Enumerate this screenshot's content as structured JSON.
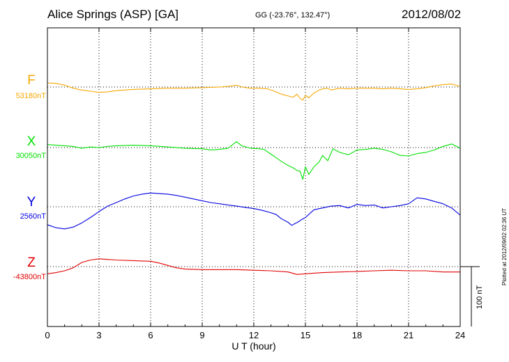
{
  "header": {
    "station": "Alice Springs (ASP)  [GA]",
    "coords": "GG (-23.76°, 132.47°)",
    "date": "2012/08/02"
  },
  "footer": {
    "plotted": "Plotted at 2012/09/02 02:36 UT",
    "scale_label": "100 nT"
  },
  "channels": [
    {
      "name": "F",
      "baseline": "53180nT",
      "color": "#f5a800"
    },
    {
      "name": "X",
      "baseline": "30050nT",
      "color": "#00e000"
    },
    {
      "name": "Y",
      "baseline": "2560nT",
      "color": "#0000e0"
    },
    {
      "name": "Z",
      "baseline": "-43800nT",
      "color": "#e00000"
    }
  ],
  "chart_data": {
    "type": "line",
    "xlabel": "U T (hour)",
    "xlim": [
      0,
      24
    ],
    "x_ticks": [
      0,
      3,
      6,
      9,
      12,
      15,
      18,
      21,
      24
    ],
    "x_tick_labels": [
      "0",
      "3",
      "6",
      "9",
      "12",
      "15",
      "18",
      "21",
      "24"
    ],
    "y_unit": "nT",
    "scale_bar_nT": 100,
    "grid": true,
    "series": [
      {
        "name": "F",
        "baseline_nT": 53180,
        "points": [
          [
            0,
            7
          ],
          [
            0.5,
            6
          ],
          [
            1,
            3
          ],
          [
            1.5,
            -2
          ],
          [
            2,
            -5
          ],
          [
            2.5,
            -7
          ],
          [
            3,
            -9
          ],
          [
            3.5,
            -8
          ],
          [
            4,
            -6
          ],
          [
            5,
            -4
          ],
          [
            6,
            -3
          ],
          [
            7,
            -2
          ],
          [
            8,
            -2
          ],
          [
            9,
            -1
          ],
          [
            10,
            0
          ],
          [
            10.5,
            1
          ],
          [
            11,
            3
          ],
          [
            11.3,
            0
          ],
          [
            11.8,
            -2
          ],
          [
            12.3,
            -2
          ],
          [
            12.8,
            -3
          ],
          [
            13.2,
            -7
          ],
          [
            13.6,
            -12
          ],
          [
            14,
            -15
          ],
          [
            14.3,
            -17
          ],
          [
            14.5,
            -12
          ],
          [
            14.7,
            -19
          ],
          [
            14.85,
            -22
          ],
          [
            15,
            -14
          ],
          [
            15.2,
            -18
          ],
          [
            15.5,
            -10
          ],
          [
            15.8,
            -5
          ],
          [
            16,
            -3
          ],
          [
            16.3,
            -2
          ],
          [
            16.5,
            -5
          ],
          [
            17,
            -2
          ],
          [
            17.5,
            -3
          ],
          [
            18,
            -2
          ],
          [
            18.5,
            -2
          ],
          [
            19,
            -2
          ],
          [
            19.5,
            -3
          ],
          [
            20,
            -2
          ],
          [
            20.5,
            -3
          ],
          [
            21,
            -4
          ],
          [
            21.5,
            -3
          ],
          [
            22,
            -1
          ],
          [
            22.5,
            2
          ],
          [
            23,
            4
          ],
          [
            23.5,
            5
          ],
          [
            24,
            1
          ]
        ]
      },
      {
        "name": "X",
        "baseline_nT": 30050,
        "points": [
          [
            0,
            5
          ],
          [
            0.5,
            4
          ],
          [
            1,
            3
          ],
          [
            1.5,
            2
          ],
          [
            2,
            -1
          ],
          [
            2.5,
            1
          ],
          [
            3,
            0
          ],
          [
            3.5,
            2
          ],
          [
            4,
            3
          ],
          [
            5,
            4
          ],
          [
            6,
            3
          ],
          [
            7,
            1
          ],
          [
            8,
            -1
          ],
          [
            9,
            -2
          ],
          [
            9.5,
            -4
          ],
          [
            10,
            -3
          ],
          [
            10.5,
            -1
          ],
          [
            11,
            10
          ],
          [
            11.3,
            3
          ],
          [
            11.8,
            -1
          ],
          [
            12.3,
            -2
          ],
          [
            12.6,
            -3
          ],
          [
            13,
            -11
          ],
          [
            13.3,
            -17
          ],
          [
            13.6,
            -23
          ],
          [
            14,
            -30
          ],
          [
            14.3,
            -34
          ],
          [
            14.5,
            -38
          ],
          [
            14.7,
            -40
          ],
          [
            14.85,
            -53
          ],
          [
            15,
            -32
          ],
          [
            15.2,
            -45
          ],
          [
            15.5,
            -32
          ],
          [
            15.8,
            -24
          ],
          [
            16,
            -13
          ],
          [
            16.3,
            -22
          ],
          [
            16.6,
            -2
          ],
          [
            17,
            -8
          ],
          [
            17.5,
            -12
          ],
          [
            18,
            -4
          ],
          [
            18.5,
            -3
          ],
          [
            19,
            -1
          ],
          [
            19.5,
            -3
          ],
          [
            20,
            -7
          ],
          [
            20.5,
            -13
          ],
          [
            21,
            -14
          ],
          [
            21.5,
            -10
          ],
          [
            22,
            -8
          ],
          [
            22.5,
            -4
          ],
          [
            23,
            2
          ],
          [
            23.5,
            6
          ],
          [
            24,
            -1
          ]
        ]
      },
      {
        "name": "Y",
        "baseline_nT": 2560,
        "points": [
          [
            0,
            -30
          ],
          [
            0.5,
            -35
          ],
          [
            1,
            -37
          ],
          [
            1.5,
            -34
          ],
          [
            2,
            -27
          ],
          [
            2.5,
            -18
          ],
          [
            3,
            -8
          ],
          [
            3.5,
            1
          ],
          [
            4,
            7
          ],
          [
            4.5,
            13
          ],
          [
            5,
            18
          ],
          [
            5.5,
            21
          ],
          [
            6,
            23
          ],
          [
            6.5,
            22
          ],
          [
            7,
            21
          ],
          [
            7.5,
            19
          ],
          [
            8,
            16
          ],
          [
            8.5,
            13
          ],
          [
            9,
            10
          ],
          [
            9.5,
            7
          ],
          [
            10,
            5
          ],
          [
            10.5,
            3
          ],
          [
            11,
            1
          ],
          [
            11.5,
            -1
          ],
          [
            12,
            -3
          ],
          [
            12.5,
            -6
          ],
          [
            13,
            -10
          ],
          [
            13.3,
            -13
          ],
          [
            13.6,
            -20
          ],
          [
            14,
            -26
          ],
          [
            14.2,
            -31
          ],
          [
            14.4,
            -28
          ],
          [
            14.6,
            -25
          ],
          [
            14.8,
            -21
          ],
          [
            15,
            -18
          ],
          [
            15.5,
            -5
          ],
          [
            16,
            -2
          ],
          [
            16.5,
            1
          ],
          [
            17,
            2
          ],
          [
            17.5,
            -2
          ],
          [
            18,
            4
          ],
          [
            18.5,
            2
          ],
          [
            19,
            3
          ],
          [
            19.5,
            -2
          ],
          [
            20,
            0
          ],
          [
            20.5,
            2
          ],
          [
            21,
            5
          ],
          [
            21.5,
            15
          ],
          [
            22,
            13
          ],
          [
            22.5,
            9
          ],
          [
            23,
            5
          ],
          [
            23.5,
            -2
          ],
          [
            24,
            -14
          ]
        ]
      },
      {
        "name": "Z",
        "baseline_nT": -43800,
        "points": [
          [
            0,
            -12
          ],
          [
            0.5,
            -10
          ],
          [
            1,
            -7
          ],
          [
            1.5,
            -2
          ],
          [
            2,
            7
          ],
          [
            2.5,
            11
          ],
          [
            3,
            13
          ],
          [
            3.5,
            12
          ],
          [
            4,
            11
          ],
          [
            5,
            10
          ],
          [
            6,
            9
          ],
          [
            6.5,
            6
          ],
          [
            7,
            2
          ],
          [
            7.5,
            -2
          ],
          [
            8,
            -4
          ],
          [
            9,
            -5
          ],
          [
            10,
            -5
          ],
          [
            11,
            -5
          ],
          [
            12,
            -6
          ],
          [
            13,
            -7
          ],
          [
            14,
            -9
          ],
          [
            14.5,
            -13
          ],
          [
            15,
            -12
          ],
          [
            16,
            -10
          ],
          [
            17,
            -9
          ],
          [
            18,
            -8
          ],
          [
            19,
            -7
          ],
          [
            20,
            -6
          ],
          [
            21,
            -7
          ],
          [
            22,
            -7
          ],
          [
            23,
            -9
          ],
          [
            24,
            -9
          ]
        ]
      }
    ]
  }
}
